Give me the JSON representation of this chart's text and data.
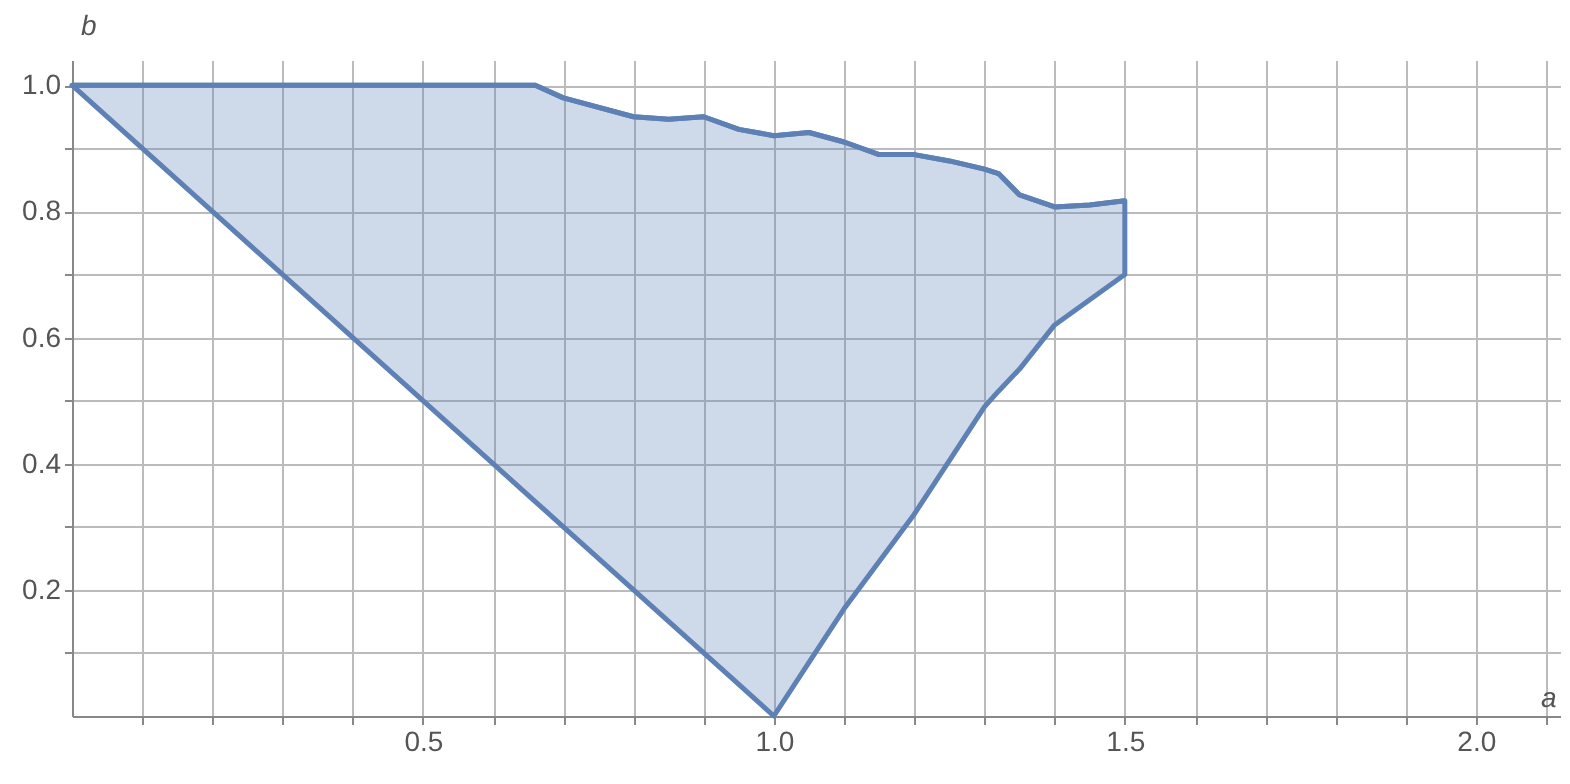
{
  "chart_data": {
    "type": "line",
    "xlabel": "a",
    "ylabel": "b",
    "x": [
      0,
      0.66,
      0.7,
      0.8,
      0.85,
      0.9,
      0.95,
      1.0,
      1.05,
      1.1,
      1.15,
      1.2,
      1.25,
      1.3,
      1.32,
      1.35,
      1.4,
      1.45,
      1.5
    ],
    "series": [
      {
        "color": "#5e81b5",
        "values": [
          1,
          1,
          0.98,
          0.95,
          0.946,
          0.95,
          0.93,
          0.92,
          0.925,
          0.91,
          0.89,
          0.89,
          0.88,
          0.867,
          0.86,
          0.826,
          0.807,
          0.81,
          0.817
        ],
        "upper": [
          1,
          1,
          0.98,
          0.95,
          0.946,
          0.95,
          0.93,
          0.92,
          0.925,
          0.91,
          0.89,
          0.89,
          0.88,
          0.867,
          0.86,
          0.826,
          0.807,
          0.81,
          0.817
        ],
        "lower": [
          1,
          0.34,
          0.3,
          0.2,
          0.15,
          0.1,
          0.05,
          0,
          0.085,
          0.17,
          0.245,
          0.32,
          0.405,
          0.49,
          0.515,
          0.55,
          0.62,
          0.66,
          0.7
        ]
      }
    ],
    "xlim": [
      0,
      2.12
    ],
    "xticks": [
      {
        "value": 0.1,
        "label": null
      },
      {
        "value": 0.2,
        "label": null
      },
      {
        "value": 0.3,
        "label": null
      },
      {
        "value": 0.4,
        "label": null
      },
      {
        "value": 0.5,
        "label": "0.5"
      },
      {
        "value": 0.6,
        "label": null
      },
      {
        "value": 0.7,
        "label": null
      },
      {
        "value": 0.8,
        "label": null
      },
      {
        "value": 0.9,
        "label": null
      },
      {
        "value": 1.0,
        "label": "1.0"
      },
      {
        "value": 1.1,
        "label": null
      },
      {
        "value": 1.2,
        "label": null
      },
      {
        "value": 1.3,
        "label": null
      },
      {
        "value": 1.4,
        "label": null
      },
      {
        "value": 1.5,
        "label": "1.5"
      },
      {
        "value": 1.6,
        "label": null
      },
      {
        "value": 1.7,
        "label": null
      },
      {
        "value": 1.8,
        "label": null
      },
      {
        "value": 1.9,
        "label": null
      },
      {
        "value": 2.0,
        "label": "2.0"
      },
      {
        "value": 2.1,
        "label": null
      }
    ],
    "ylim": [
      0,
      1.04
    ],
    "yticks": [
      {
        "value": 0.1,
        "label": null
      },
      0.2,
      {
        "value": 0.3,
        "label": null
      },
      0.4,
      {
        "value": 0.5,
        "label": null
      },
      0.6,
      {
        "value": 0.7,
        "label": null
      },
      0.8,
      {
        "value": 0.9,
        "label": null
      },
      {
        "value": 1.0,
        "label": "1.0"
      }
    ],
    "grid": true
  }
}
